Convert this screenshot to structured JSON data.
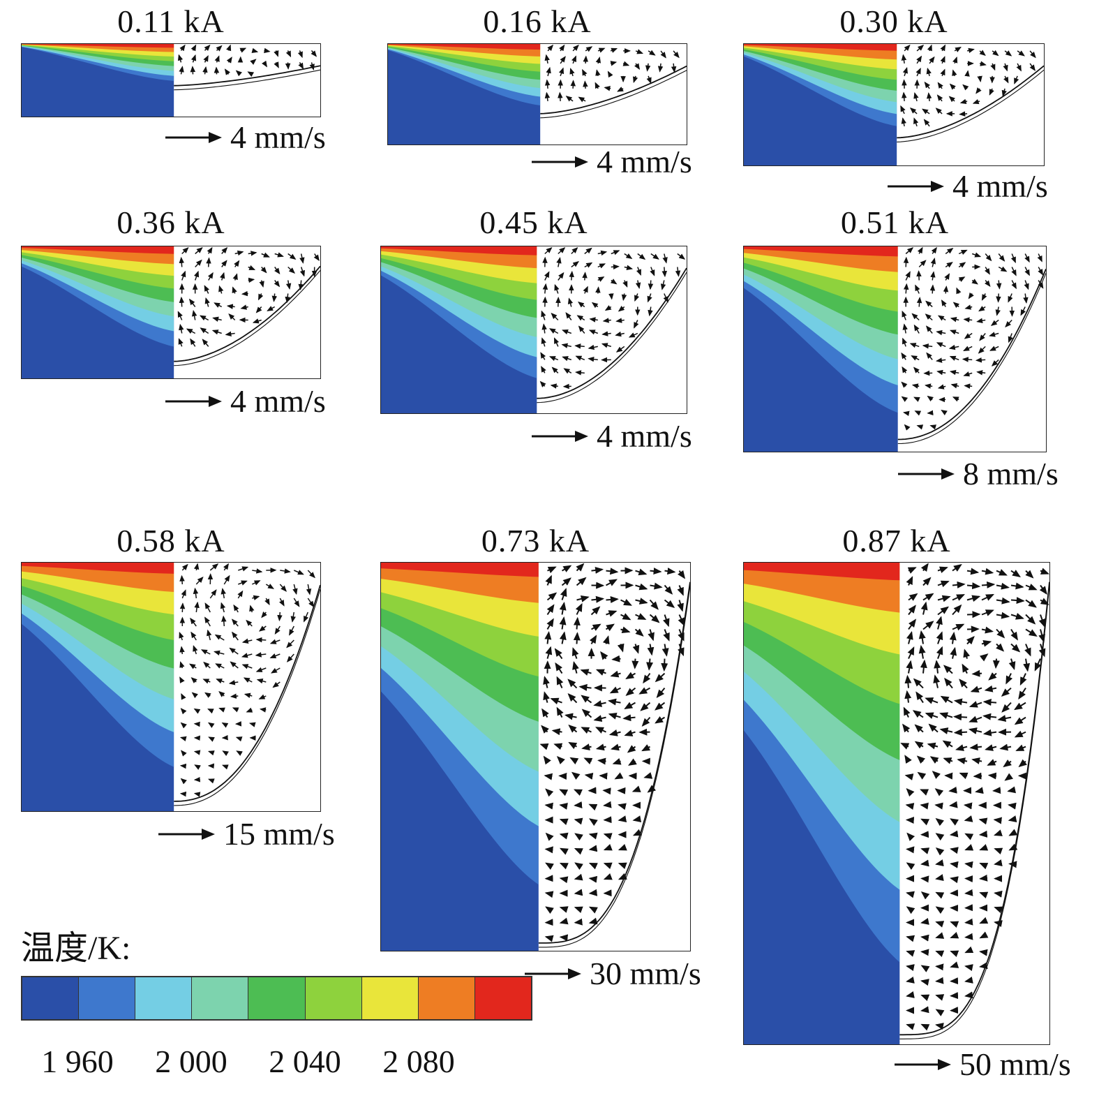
{
  "chart_data": {
    "type": "heatmap",
    "title": "",
    "description": "Nine simulation panels of a melt pool at increasing current. Left half of each panel: temperature contour map; right half: velocity vector field with vortex. Bottom-left: temperature colorbar in Kelvin.",
    "panels": [
      {
        "current": "0.11 kA",
        "velocity_scale": "4 mm/s",
        "render": {
          "depth": 0.58,
          "lf": 0.08,
          "g": 1.1,
          "q": 1.5,
          "topY": 0.3,
          "vx": 0.55,
          "vy": 0.32,
          "vr": 0.5,
          "step": 17,
          "len": 9
        }
      },
      {
        "current": "0.16 kA",
        "velocity_scale": "4 mm/s",
        "render": {
          "depth": 0.7,
          "lf": 0.1,
          "g": 1.15,
          "q": 1.6,
          "topY": 0.22,
          "vx": 0.5,
          "vy": 0.3,
          "vr": 0.45,
          "step": 18,
          "len": 10
        }
      },
      {
        "current": "0.30 kA",
        "velocity_scale": "4 mm/s",
        "render": {
          "depth": 0.78,
          "lf": 0.15,
          "g": 1.2,
          "q": 1.7,
          "topY": 0.18,
          "vx": 0.5,
          "vy": 0.28,
          "vr": 0.45,
          "step": 18,
          "len": 10
        }
      },
      {
        "current": "0.36 kA",
        "velocity_scale": "4 mm/s",
        "render": {
          "depth": 0.88,
          "lf": 0.2,
          "g": 1.25,
          "q": 1.8,
          "topY": 0.15,
          "vx": 0.5,
          "vy": 0.3,
          "vr": 0.42,
          "step": 19,
          "len": 11
        }
      },
      {
        "current": "0.45 kA",
        "velocity_scale": "4 mm/s",
        "render": {
          "depth": 0.92,
          "lf": 0.22,
          "g": 1.3,
          "q": 1.9,
          "topY": 0.13,
          "vx": 0.48,
          "vy": 0.28,
          "vr": 0.42,
          "step": 19,
          "len": 11
        }
      },
      {
        "current": "0.51 kA",
        "velocity_scale": "8 mm/s",
        "render": {
          "depth": 0.95,
          "lf": 0.25,
          "g": 1.35,
          "q": 2.1,
          "topY": 0.11,
          "vx": 0.45,
          "vy": 0.22,
          "vr": 0.4,
          "step": 19,
          "len": 11
        }
      },
      {
        "current": "0.58 kA",
        "velocity_scale": "15 mm/s",
        "render": {
          "depth": 0.97,
          "lf": 0.3,
          "g": 1.4,
          "q": 2.3,
          "topY": 0.09,
          "vx": 0.58,
          "vy": 0.18,
          "vr": 0.35,
          "step": 20,
          "len": 12
        }
      },
      {
        "current": "0.73 kA",
        "velocity_scale": "30 mm/s",
        "render": {
          "depth": 0.99,
          "lf": 0.4,
          "g": 1.5,
          "q": 3.0,
          "topY": 0.05,
          "vx": 0.5,
          "vy": 0.22,
          "vr": 0.4,
          "step": 21,
          "len": 14
        }
      },
      {
        "current": "0.87 kA",
        "velocity_scale": "50 mm/s",
        "render": {
          "depth": 0.99,
          "lf": 0.42,
          "g": 1.5,
          "q": 3.4,
          "topY": 0.04,
          "vx": 0.55,
          "vy": 0.2,
          "vr": 0.4,
          "step": 21,
          "len": 15
        }
      }
    ],
    "colorbar": {
      "label": "温度/K:",
      "tick_labels": [
        "1 960",
        "2 000",
        "2 040",
        "2 080"
      ],
      "tick_values": [
        1960,
        2000,
        2040,
        2080
      ],
      "unit": "K",
      "colors": [
        "#2a4fa8",
        "#3e78cd",
        "#74cee4",
        "#7dd3ae",
        "#4dbd53",
        "#8ed23d",
        "#e9e53a",
        "#ee7d23",
        "#e2271d"
      ]
    }
  }
}
